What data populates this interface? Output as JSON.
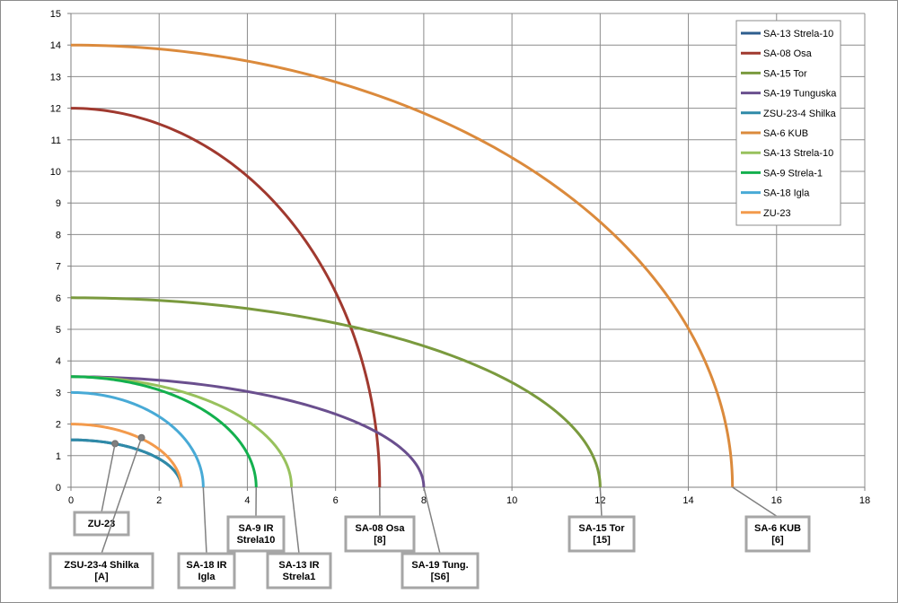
{
  "chart_data": {
    "type": "line",
    "title": "",
    "xlabel": "",
    "ylabel": "",
    "xlim": [
      0,
      18
    ],
    "ylim": [
      0,
      15
    ],
    "x_ticks": [
      "0",
      "2",
      "4",
      "6",
      "8",
      "10",
      "12",
      "14",
      "16",
      "18"
    ],
    "y_ticks": [
      "0",
      "1",
      "2",
      "3",
      "4",
      "5",
      "6",
      "7",
      "8",
      "9",
      "10",
      "11",
      "12",
      "13",
      "14",
      "15"
    ],
    "grid": true,
    "legend_position": "top-right",
    "series": [
      {
        "name": "SA-13 Strela-10",
        "color": "#2e5e8e",
        "range": 2.5,
        "altitude": 1.5
      },
      {
        "name": "SA-08 Osa",
        "color": "#a0392f",
        "range": 7,
        "altitude": 12
      },
      {
        "name": "SA-15 Tor",
        "color": "#7a9a3e",
        "range": 12,
        "altitude": 6
      },
      {
        "name": "SA-19 Tunguska",
        "color": "#6a4f8e",
        "range": 8,
        "altitude": 3.5
      },
      {
        "name": "ZSU-23-4 Shilka",
        "color": "#2f8aa8",
        "range": 2.5,
        "altitude": 1.5
      },
      {
        "name": "SA-6 KUB",
        "color": "#db8a3c",
        "range": 15,
        "altitude": 14
      },
      {
        "name": "SA-13 Strela-10",
        "color": "#98c15d",
        "range": 5,
        "altitude": 3.5
      },
      {
        "name": "SA-9 Strela-1",
        "color": "#13b04e",
        "range": 4.2,
        "altitude": 3.5
      },
      {
        "name": "SA-18 Igla",
        "color": "#48aad6",
        "range": 3,
        "altitude": 3
      },
      {
        "name": "ZU-23",
        "color": "#f39a4c",
        "range": 2.5,
        "altitude": 2
      }
    ],
    "markers": [
      {
        "x": 1.0,
        "y": 1.38
      },
      {
        "x": 1.6,
        "y": 1.57
      }
    ],
    "callouts": [
      {
        "lines": [
          "ZU-23"
        ],
        "x": 1.0,
        "y": 1.38
      },
      {
        "lines": [
          "ZSU-23-4 Shilka",
          "[A]"
        ],
        "x": 1.6,
        "y": 1.57
      },
      {
        "lines": [
          "SA-18 IR",
          "Igla"
        ],
        "x": 3.0,
        "y": 0
      },
      {
        "lines": [
          "SA-9  IR",
          "Strela10"
        ],
        "x": 4.2,
        "y": 0
      },
      {
        "lines": [
          "SA-13  IR",
          "Strela1"
        ],
        "x": 5.0,
        "y": 0
      },
      {
        "lines": [
          "SA-08 Osa",
          "[8]"
        ],
        "x": 7.0,
        "y": 0
      },
      {
        "lines": [
          "SA-19 Tung.",
          "[S6]"
        ],
        "x": 8.0,
        "y": 0
      },
      {
        "lines": [
          "SA-15 Tor",
          "[15]"
        ],
        "x": 12.0,
        "y": 0
      },
      {
        "lines": [
          "SA-6 KUB",
          "[6]"
        ],
        "x": 15.0,
        "y": 0
      }
    ]
  }
}
